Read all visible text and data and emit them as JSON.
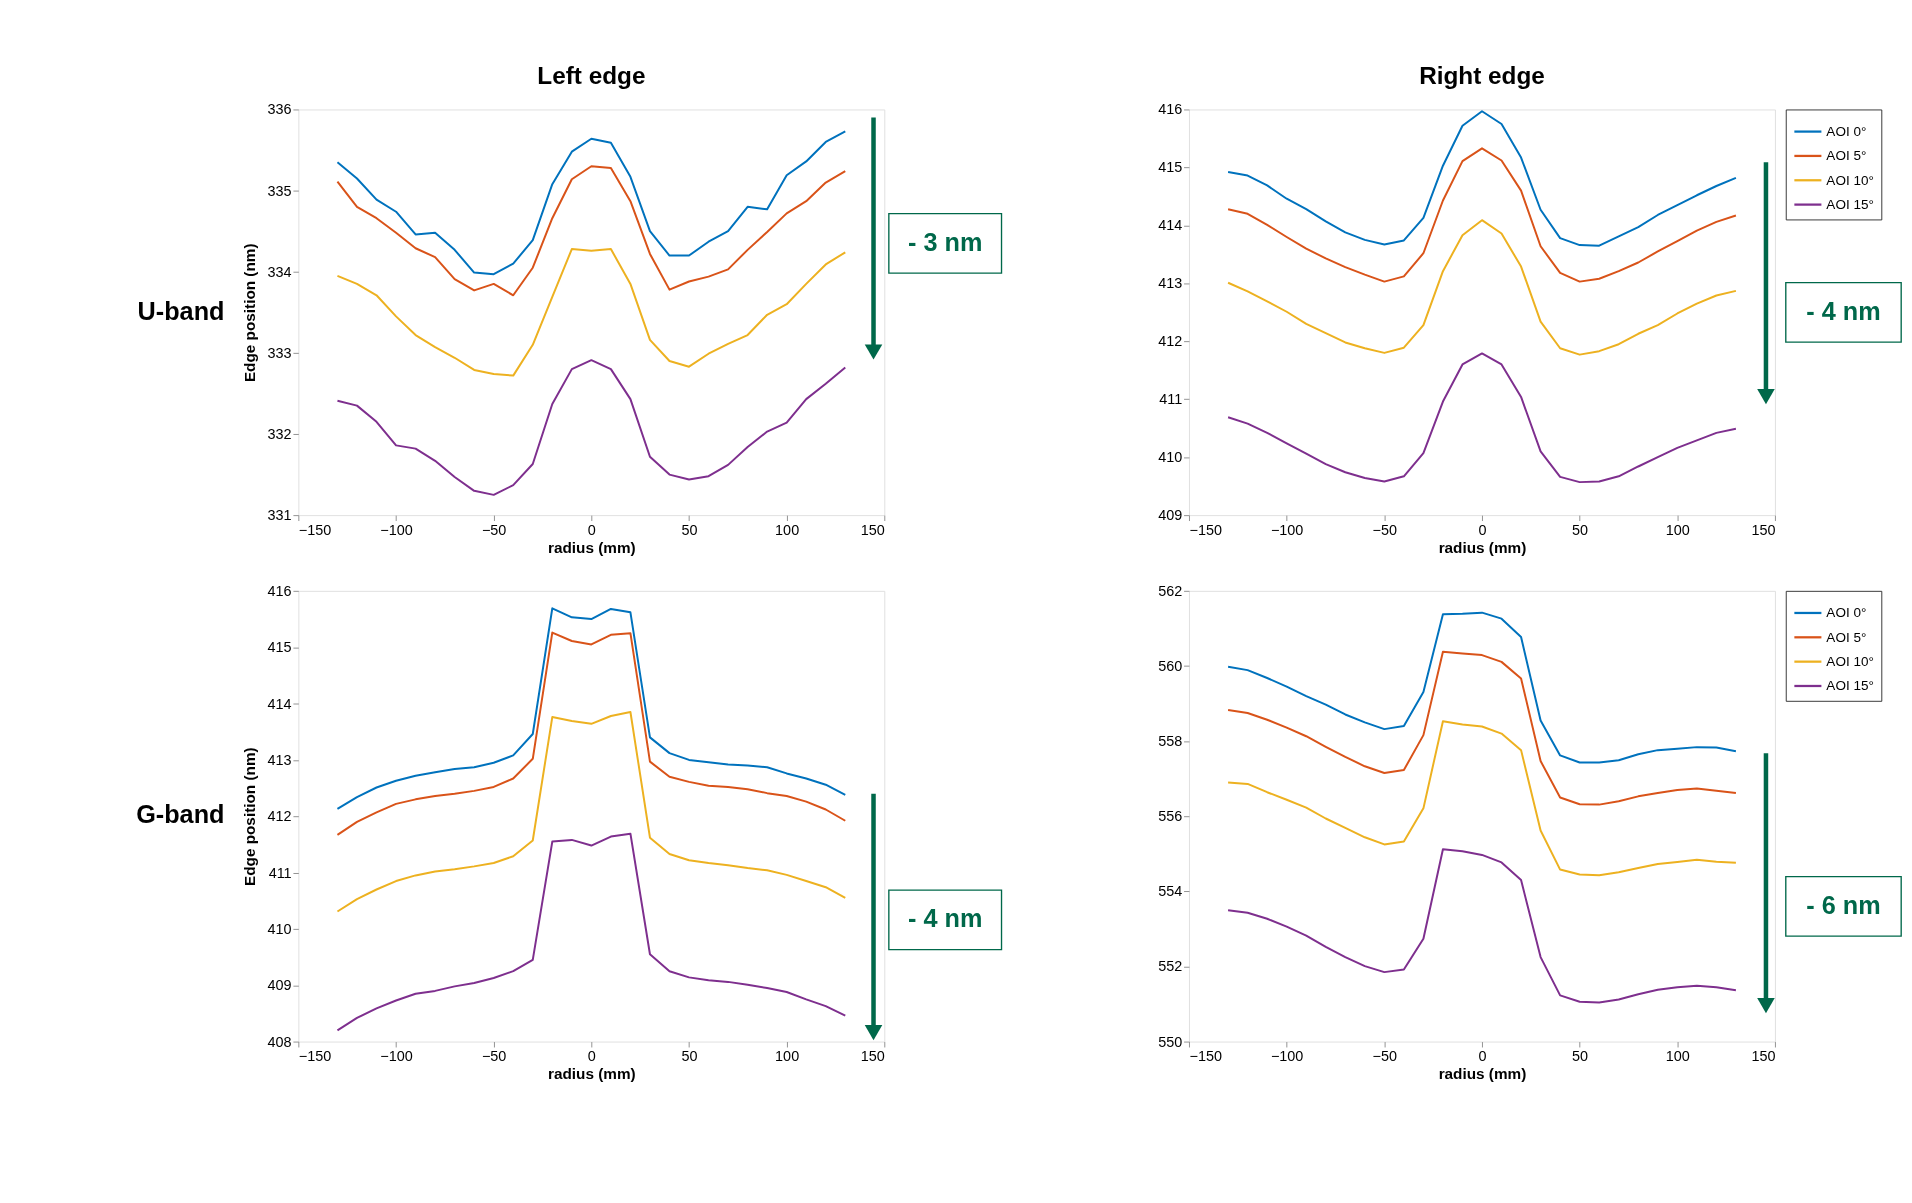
{
  "chart_data": [
    {
      "type": "line",
      "title": "Left edge",
      "xlabel": "radius (mm)",
      "ylabel": "Edge position (nm)",
      "xlim": [
        -150,
        150
      ],
      "xticks": [
        -150,
        -100,
        -50,
        0,
        50,
        100,
        150
      ],
      "ylim": [
        331,
        336
      ],
      "yticks": [
        331,
        332,
        333,
        334,
        335,
        336
      ],
      "grid": false,
      "legend": false,
      "annotations": [
        "U-band",
        "- 3 nm"
      ],
      "x": [
        -130,
        -120,
        -110,
        -100,
        -90,
        -80,
        -70,
        -60,
        -50,
        -40,
        -30,
        -20,
        -10,
        0,
        10,
        20,
        30,
        40,
        50,
        60,
        70,
        80,
        90,
        100,
        110,
        120,
        130
      ],
      "series": [
        {
          "color": "#0072bd",
          "values": [
            335.35,
            335.15,
            334.89,
            334.74,
            334.46,
            334.48,
            334.27,
            333.99,
            333.97,
            334.1,
            334.39,
            335.08,
            335.48,
            335.64,
            335.59,
            335.17,
            334.5,
            334.2,
            334.2,
            334.37,
            334.5,
            334.8,
            334.77,
            335.19,
            335.36,
            335.6,
            335.73
          ]
        },
        {
          "color": "#d95319",
          "values": [
            335.11,
            334.8,
            334.66,
            334.48,
            334.29,
            334.18,
            333.91,
            333.77,
            333.85,
            333.71,
            334.05,
            334.66,
            335.14,
            335.3,
            335.28,
            334.87,
            334.22,
            333.78,
            333.88,
            333.94,
            334.03,
            334.27,
            334.49,
            334.72,
            334.87,
            335.1,
            335.24
          ]
        },
        {
          "color": "#edb120",
          "values": [
            333.95,
            333.85,
            333.71,
            333.45,
            333.22,
            333.07,
            332.94,
            332.79,
            332.74,
            332.72,
            333.1,
            333.69,
            334.28,
            334.26,
            334.28,
            333.85,
            333.16,
            332.9,
            332.83,
            332.99,
            333.11,
            333.22,
            333.47,
            333.6,
            333.85,
            334.09,
            334.24
          ]
        },
        {
          "color": "#7e2f8e",
          "values": [
            332.41,
            332.35,
            332.15,
            331.86,
            331.82,
            331.67,
            331.47,
            331.3,
            331.25,
            331.37,
            331.63,
            332.37,
            332.8,
            332.91,
            332.8,
            332.43,
            331.72,
            331.5,
            331.44,
            331.48,
            331.62,
            331.84,
            332.03,
            332.14,
            332.43,
            332.62,
            332.82
          ]
        }
      ]
    },
    {
      "type": "line",
      "title": "Right edge",
      "xlabel": "radius (mm)",
      "xlim": [
        -150,
        150
      ],
      "xticks": [
        -150,
        -100,
        -50,
        0,
        50,
        100,
        150
      ],
      "ylim": [
        409,
        416
      ],
      "yticks": [
        409,
        410,
        411,
        412,
        413,
        414,
        415,
        416
      ],
      "grid": false,
      "legend": "right",
      "annotations": [
        "- 4 nm"
      ],
      "x": [
        -130,
        -120,
        -110,
        -100,
        -90,
        -80,
        -70,
        -60,
        -50,
        -40,
        -30,
        -20,
        -10,
        0,
        10,
        20,
        30,
        40,
        50,
        60,
        70,
        80,
        90,
        100,
        110,
        120,
        130
      ],
      "series": [
        {
          "name": "AOI 0°",
          "color": "#0072bd",
          "values": [
            414.92,
            414.86,
            414.69,
            414.46,
            414.28,
            414.07,
            413.88,
            413.75,
            413.67,
            413.74,
            414.13,
            415.03,
            415.72,
            415.97,
            415.75,
            415.17,
            414.27,
            413.78,
            413.66,
            413.65,
            413.81,
            413.97,
            414.18,
            414.35,
            414.52,
            414.68,
            414.82
          ]
        },
        {
          "name": "AOI 5°",
          "color": "#d95319",
          "values": [
            414.28,
            414.2,
            414.01,
            413.8,
            413.6,
            413.43,
            413.28,
            413.15,
            413.03,
            413.12,
            413.52,
            414.43,
            415.11,
            415.33,
            415.12,
            414.6,
            413.64,
            413.18,
            413.03,
            413.08,
            413.21,
            413.36,
            413.55,
            413.73,
            413.91,
            414.06,
            414.17
          ]
        },
        {
          "name": "AOI 10°",
          "color": "#edb120",
          "values": [
            413.01,
            412.86,
            412.69,
            412.51,
            412.3,
            412.14,
            411.98,
            411.88,
            411.8,
            411.89,
            412.28,
            413.21,
            413.83,
            414.09,
            413.86,
            413.29,
            412.34,
            411.88,
            411.77,
            411.83,
            411.95,
            412.13,
            412.28,
            412.48,
            412.65,
            412.79,
            412.87
          ]
        },
        {
          "name": "AOI 15°",
          "color": "#7e2f8e",
          "values": [
            410.69,
            410.58,
            410.42,
            410.24,
            410.06,
            409.88,
            409.74,
            409.64,
            409.58,
            409.67,
            410.07,
            410.96,
            411.6,
            411.79,
            411.6,
            411.04,
            410.1,
            409.66,
            409.57,
            409.58,
            409.67,
            409.84,
            410.0,
            410.16,
            410.29,
            410.42,
            410.49
          ]
        }
      ]
    },
    {
      "type": "line",
      "xlabel": "radius (mm)",
      "ylabel": "Edge position (nm)",
      "xlim": [
        -150,
        150
      ],
      "xticks": [
        -150,
        -100,
        -50,
        0,
        50,
        100,
        150
      ],
      "ylim": [
        408,
        416
      ],
      "yticks": [
        408,
        409,
        410,
        411,
        412,
        413,
        414,
        415,
        416
      ],
      "grid": false,
      "legend": false,
      "annotations": [
        "G-band",
        "- 4 nm"
      ],
      "x": [
        -130,
        -120,
        -110,
        -100,
        -90,
        -80,
        -70,
        -60,
        -50,
        -40,
        -30,
        -20,
        -10,
        0,
        10,
        20,
        30,
        40,
        50,
        60,
        70,
        80,
        90,
        100,
        110,
        120,
        130
      ],
      "series": [
        {
          "color": "#0072bd",
          "values": [
            412.13,
            412.34,
            412.51,
            412.63,
            412.72,
            412.78,
            412.84,
            412.87,
            412.95,
            413.08,
            413.46,
            415.69,
            415.53,
            415.5,
            415.68,
            415.62,
            413.4,
            413.12,
            413.0,
            412.96,
            412.92,
            412.9,
            412.87,
            412.76,
            412.67,
            412.56,
            412.38
          ]
        },
        {
          "color": "#d95319",
          "values": [
            411.67,
            411.9,
            412.07,
            412.22,
            412.3,
            412.36,
            412.4,
            412.45,
            412.52,
            412.67,
            413.02,
            415.26,
            415.11,
            415.05,
            415.22,
            415.25,
            412.97,
            412.7,
            412.61,
            412.54,
            412.52,
            412.48,
            412.41,
            412.36,
            412.26,
            412.12,
            411.92
          ]
        },
        {
          "color": "#edb120",
          "values": [
            410.31,
            410.53,
            410.7,
            410.85,
            410.95,
            411.02,
            411.06,
            411.11,
            411.17,
            411.29,
            411.57,
            413.76,
            413.69,
            413.64,
            413.78,
            413.85,
            411.62,
            411.33,
            411.22,
            411.17,
            411.13,
            411.08,
            411.04,
            410.96,
            410.85,
            410.74,
            410.55
          ]
        },
        {
          "color": "#7e2f8e",
          "values": [
            408.2,
            408.42,
            408.59,
            408.73,
            408.85,
            408.9,
            408.98,
            409.04,
            409.13,
            409.25,
            409.45,
            411.55,
            411.58,
            411.48,
            411.64,
            411.69,
            409.55,
            409.25,
            409.14,
            409.09,
            409.06,
            409.01,
            408.95,
            408.88,
            408.75,
            408.63,
            408.46
          ]
        }
      ]
    },
    {
      "type": "line",
      "xlabel": "radius (mm)",
      "xlim": [
        -150,
        150
      ],
      "xticks": [
        -150,
        -100,
        -50,
        0,
        50,
        100,
        150
      ],
      "ylim": [
        550,
        562
      ],
      "yticks": [
        550,
        552,
        554,
        556,
        558,
        560,
        562
      ],
      "grid": false,
      "legend": "right",
      "annotations": [
        "- 6 nm"
      ],
      "x": [
        -130,
        -120,
        -110,
        -100,
        -90,
        -80,
        -70,
        -60,
        -50,
        -40,
        -30,
        -20,
        -10,
        0,
        10,
        20,
        30,
        40,
        50,
        60,
        70,
        80,
        90,
        100,
        110,
        120,
        130
      ],
      "series": [
        {
          "name": "AOI 0°",
          "color": "#0072bd",
          "values": [
            559.98,
            559.89,
            559.68,
            559.45,
            559.2,
            558.97,
            558.71,
            558.5,
            558.32,
            558.4,
            559.31,
            561.38,
            561.39,
            561.42,
            561.26,
            560.77,
            558.55,
            557.62,
            557.43,
            557.43,
            557.49,
            557.65,
            557.76,
            557.8,
            557.84,
            557.83,
            557.73
          ]
        },
        {
          "name": "AOI 5°",
          "color": "#d95319",
          "values": [
            558.83,
            558.75,
            558.57,
            558.36,
            558.13,
            557.85,
            557.58,
            557.33,
            557.15,
            557.23,
            558.16,
            560.38,
            560.33,
            560.29,
            560.11,
            559.67,
            557.47,
            556.5,
            556.32,
            556.31,
            556.4,
            556.53,
            556.62,
            556.7,
            556.74,
            556.68,
            556.62
          ]
        },
        {
          "name": "AOI 10°",
          "color": "#edb120",
          "values": [
            556.9,
            556.86,
            556.64,
            556.44,
            556.23,
            555.94,
            555.69,
            555.44,
            555.25,
            555.33,
            556.21,
            558.53,
            558.44,
            558.39,
            558.2,
            557.76,
            555.62,
            554.58,
            554.45,
            554.43,
            554.51,
            554.62,
            554.73,
            554.78,
            554.84,
            554.79,
            554.76
          ]
        },
        {
          "name": "AOI 15°",
          "color": "#7e2f8e",
          "values": [
            553.5,
            553.43,
            553.27,
            553.06,
            552.82,
            552.52,
            552.25,
            552.01,
            551.85,
            551.92,
            552.74,
            555.12,
            555.07,
            554.97,
            554.77,
            554.3,
            552.25,
            551.23,
            551.06,
            551.04,
            551.12,
            551.26,
            551.38,
            551.45,
            551.49,
            551.45,
            551.37
          ]
        }
      ]
    }
  ]
}
